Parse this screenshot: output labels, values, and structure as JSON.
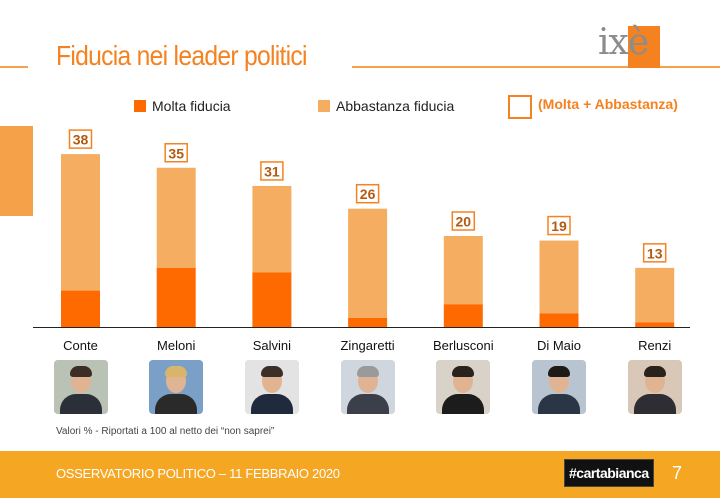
{
  "title": "Fiducia nei leader politici",
  "logo": "ixè",
  "legend": {
    "molta": "Molta fiducia",
    "abbastanza": "Abbastanza fiducia",
    "total": "(Molta + Abbastanza)"
  },
  "colors": {
    "molta": "#ff6a00",
    "abbastanza": "#f5ad62",
    "accent": "#f58220",
    "footer": "#f5a623"
  },
  "chart_data": {
    "type": "bar",
    "stacked": true,
    "categories": [
      "Conte",
      "Meloni",
      "Salvini",
      "Zingaretti",
      "Berlusconi",
      "Di Maio",
      "Renzi"
    ],
    "series": [
      {
        "name": "Molta fiducia",
        "values": [
          8,
          13,
          12,
          2,
          5,
          3,
          1
        ]
      },
      {
        "name": "Abbastanza fiducia",
        "values": [
          30,
          22,
          19,
          24,
          15,
          16,
          12
        ]
      }
    ],
    "totals": [
      38,
      35,
      31,
      26,
      20,
      19,
      13
    ],
    "ylim": [
      0,
      40
    ],
    "legend_position": "top",
    "grid": false
  },
  "leaders": [
    {
      "name": "Conte",
      "photo": "conte-photo"
    },
    {
      "name": "Meloni",
      "photo": "meloni-photo"
    },
    {
      "name": "Salvini",
      "photo": "salvini-photo"
    },
    {
      "name": "Zingaretti",
      "photo": "zingaretti-photo"
    },
    {
      "name": "Berlusconi",
      "photo": "berlusconi-photo"
    },
    {
      "name": "Di Maio",
      "photo": "di-maio-photo"
    },
    {
      "name": "Renzi",
      "photo": "renzi-photo"
    }
  ],
  "note": "Valori % - Riportati a 100 al netto dei “non saprei”",
  "footer": {
    "text": "OSSERVATORIO POLITICO – 11 FEBBRAIO 2020",
    "brand": "#cartabianca",
    "page": "7"
  }
}
